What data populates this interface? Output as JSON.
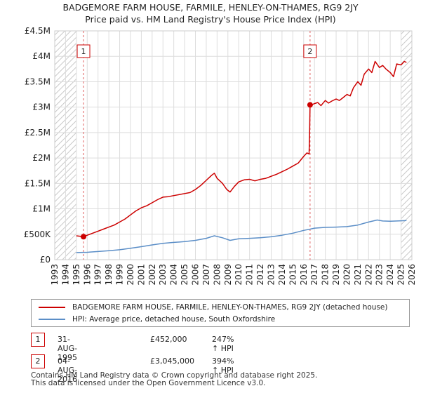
{
  "chart_data": {
    "type": "line",
    "title": "BADGEMORE FARM HOUSE, FARMILE, HENLEY-ON-THAMES, RG9 2JY",
    "subtitle": "Price paid vs. HM Land Registry's House Price Index (HPI)",
    "xlim": [
      1993.0,
      2026.0
    ],
    "ylim": [
      0,
      4500000
    ],
    "x_ticks": [
      "1993",
      "1994",
      "1995",
      "1996",
      "1997",
      "1998",
      "1999",
      "2000",
      "2001",
      "2002",
      "2003",
      "2004",
      "2005",
      "2006",
      "2007",
      "2008",
      "2009",
      "2010",
      "2011",
      "2012",
      "2013",
      "2014",
      "2015",
      "2016",
      "2017",
      "2018",
      "2019",
      "2020",
      "2021",
      "2022",
      "2023",
      "2024",
      "2025",
      "2026"
    ],
    "y_ticks": [
      {
        "value": 0,
        "label": "£0"
      },
      {
        "value": 500000,
        "label": "£500K"
      },
      {
        "value": 1000000,
        "label": "£1M"
      },
      {
        "value": 1500000,
        "label": "£1.5M"
      },
      {
        "value": 2000000,
        "label": "£2M"
      },
      {
        "value": 2500000,
        "label": "£2.5M"
      },
      {
        "value": 3000000,
        "label": "£3M"
      },
      {
        "value": 3500000,
        "label": "£3.5M"
      },
      {
        "value": 4000000,
        "label": "£4M"
      },
      {
        "value": 4500000,
        "label": "£4.5M"
      }
    ],
    "hatch_before": 1995.0,
    "hatch_after": 2025.0,
    "series": [
      {
        "name": "BADGEMORE FARM HOUSE, FARMILE, HENLEY-ON-THAMES, RG9 2JY (detached house)",
        "color": "#cc0000",
        "x": [
          1995.0,
          1995.66,
          1996.0,
          1996.5,
          1997.0,
          1997.5,
          1998.0,
          1998.5,
          1999.0,
          1999.5,
          2000.0,
          2000.5,
          2001.0,
          2001.5,
          2002.0,
          2002.5,
          2003.0,
          2003.5,
          2004.0,
          2004.5,
          2005.0,
          2005.5,
          2006.0,
          2006.5,
          2007.0,
          2007.5,
          2007.75,
          2008.0,
          2008.5,
          2008.9,
          2009.2,
          2009.6,
          2010.0,
          2010.5,
          2011.0,
          2011.5,
          2012.0,
          2012.5,
          2013.0,
          2013.5,
          2014.0,
          2014.5,
          2015.0,
          2015.5,
          2016.0,
          2016.3,
          2016.5,
          2016.55,
          2016.593,
          2016.8,
          2017.0,
          2017.3,
          2017.6,
          2018.0,
          2018.3,
          2018.6,
          2019.0,
          2019.3,
          2019.6,
          2020.0,
          2020.3,
          2020.6,
          2021.0,
          2021.3,
          2021.6,
          2022.0,
          2022.3,
          2022.6,
          2023.0,
          2023.3,
          2023.6,
          2024.0,
          2024.3,
          2024.6,
          2025.0,
          2025.3,
          2025.5
        ],
        "y": [
          470000,
          452000,
          480000,
          520000,
          560000,
          600000,
          640000,
          680000,
          740000,
          800000,
          880000,
          960000,
          1020000,
          1060000,
          1120000,
          1180000,
          1230000,
          1240000,
          1260000,
          1280000,
          1300000,
          1320000,
          1380000,
          1460000,
          1560000,
          1660000,
          1700000,
          1600000,
          1500000,
          1380000,
          1330000,
          1440000,
          1530000,
          1570000,
          1580000,
          1550000,
          1580000,
          1600000,
          1640000,
          1680000,
          1730000,
          1780000,
          1840000,
          1900000,
          2030000,
          2100000,
          2080000,
          2450000,
          3045000,
          3050000,
          3070000,
          3090000,
          3030000,
          3130000,
          3080000,
          3120000,
          3160000,
          3130000,
          3180000,
          3250000,
          3220000,
          3380000,
          3500000,
          3430000,
          3650000,
          3750000,
          3680000,
          3900000,
          3780000,
          3820000,
          3750000,
          3680000,
          3600000,
          3850000,
          3830000,
          3900000,
          3880000
        ]
      },
      {
        "name": "HPI: Average price, detached house, South Oxfordshire",
        "color": "#5b8ec7",
        "x": [
          1995.0,
          1996.0,
          1997.0,
          1998.0,
          1999.0,
          2000.0,
          2001.0,
          2002.0,
          2003.0,
          2004.0,
          2005.0,
          2006.0,
          2007.0,
          2007.75,
          2008.5,
          2009.2,
          2010.0,
          2011.0,
          2012.0,
          2013.0,
          2014.0,
          2015.0,
          2016.0,
          2016.6,
          2017.0,
          2018.0,
          2019.0,
          2020.0,
          2021.0,
          2022.0,
          2022.8,
          2023.3,
          2024.0,
          2024.6,
          2025.0,
          2025.5
        ],
        "y": [
          140000,
          145000,
          160000,
          175000,
          195000,
          225000,
          255000,
          290000,
          320000,
          340000,
          355000,
          380000,
          420000,
          470000,
          430000,
          380000,
          410000,
          420000,
          430000,
          450000,
          480000,
          520000,
          575000,
          600000,
          620000,
          635000,
          640000,
          650000,
          680000,
          740000,
          780000,
          760000,
          755000,
          760000,
          765000,
          770000
        ]
      }
    ],
    "sales": [
      {
        "label": "1",
        "x": 1995.66,
        "y": 452000
      },
      {
        "label": "2",
        "x": 2016.593,
        "y": 3045000
      }
    ]
  },
  "legend": {
    "items": [
      {
        "label": "BADGEMORE FARM HOUSE, FARMILE, HENLEY-ON-THAMES, RG9 2JY (detached house)",
        "color": "#cc0000"
      },
      {
        "label": "HPI: Average price, detached house, South Oxfordshire",
        "color": "#5b8ec7"
      }
    ]
  },
  "sales_table": [
    {
      "badge": "1",
      "date": "31-AUG-1995",
      "price": "£452,000",
      "hpi": "247% ↑ HPI"
    },
    {
      "badge": "2",
      "date": "04-AUG-2016",
      "price": "£3,045,000",
      "hpi": "394% ↑ HPI"
    }
  ],
  "footer": {
    "line1": "Contains HM Land Registry data © Crown copyright and database right 2025.",
    "line2": "This data is licensed under the Open Government Licence v3.0."
  }
}
